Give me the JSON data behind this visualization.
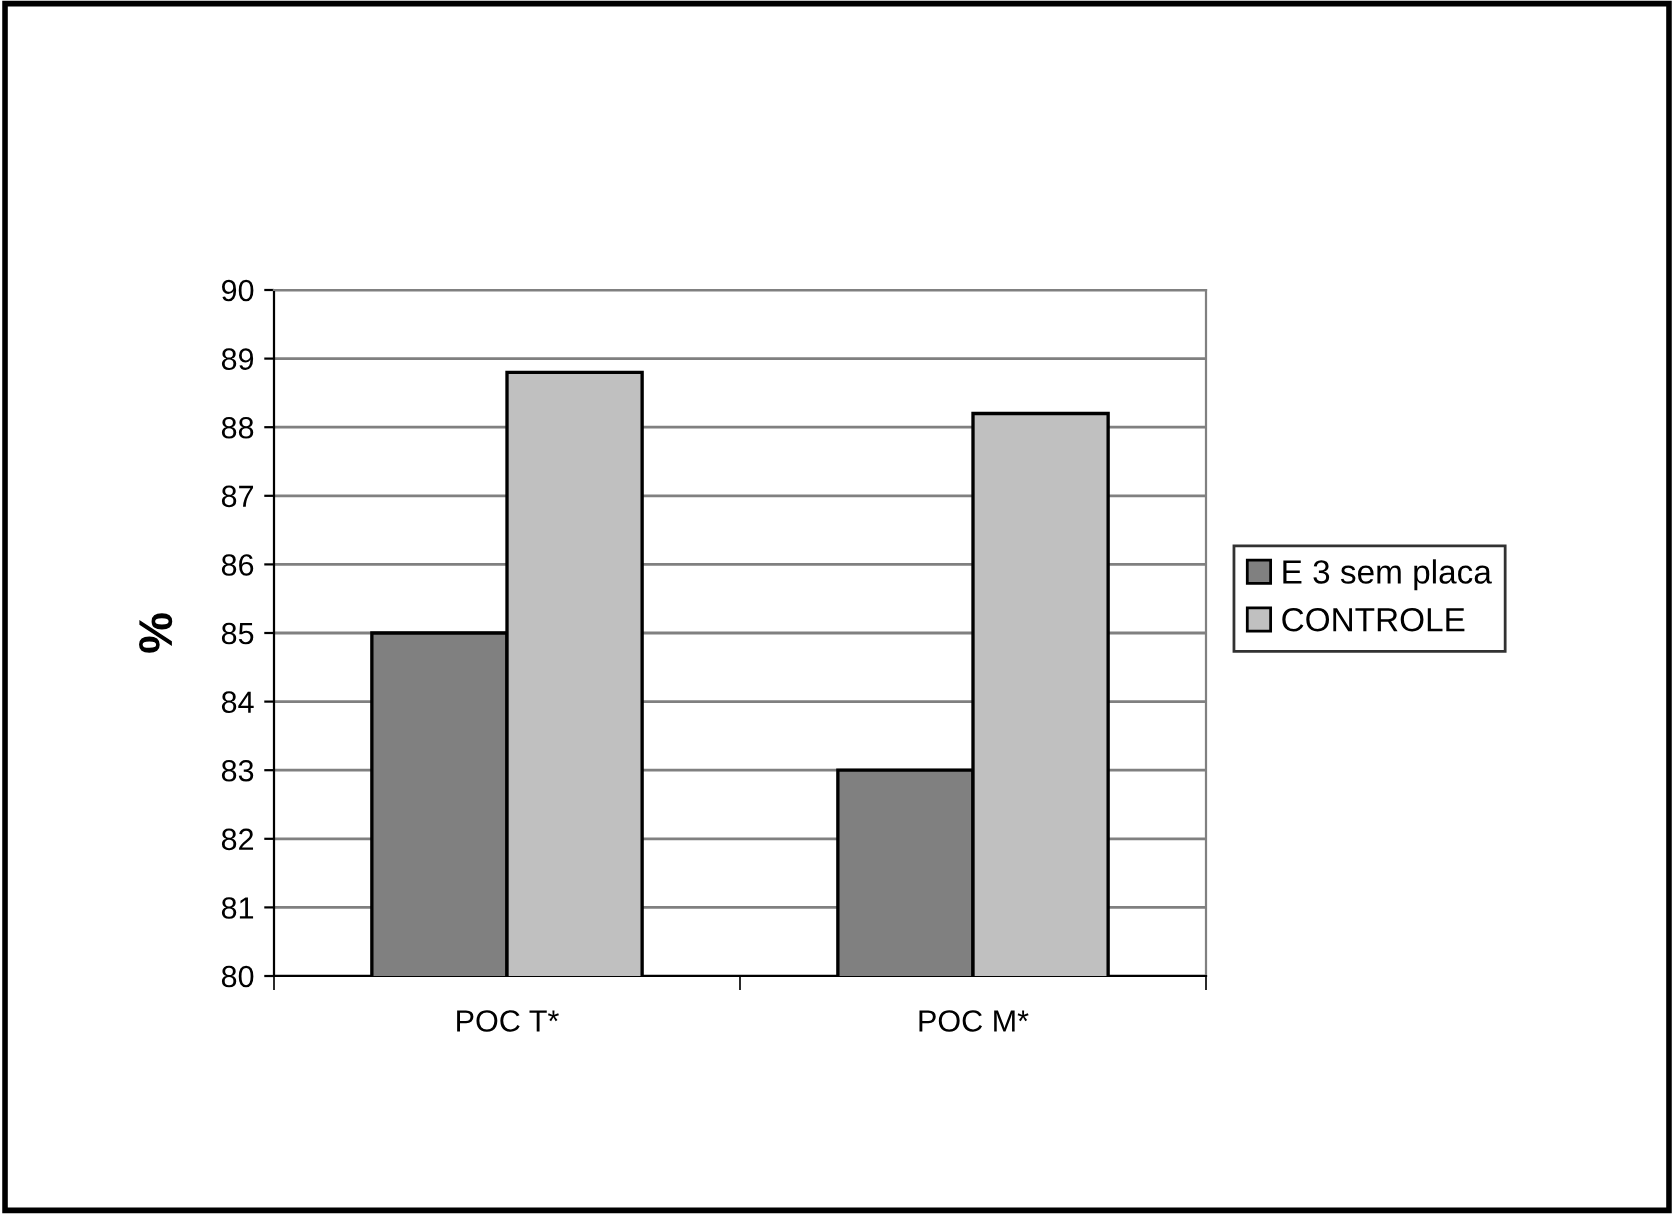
{
  "chart_data": {
    "type": "bar",
    "ylabel": "%",
    "categories": [
      "POC T*",
      "POC M*"
    ],
    "series": [
      {
        "name": "E 3 sem placa",
        "color": "#808080",
        "values": [
          85,
          83
        ]
      },
      {
        "name": "CONTROLE",
        "color": "#c0c0c0",
        "values": [
          88.8,
          88.2
        ]
      }
    ],
    "ylim": [
      80,
      90
    ],
    "yticks": [
      80,
      81,
      82,
      83,
      84,
      85,
      86,
      87,
      88,
      89,
      90
    ],
    "grid": "y",
    "legend": "right"
  }
}
